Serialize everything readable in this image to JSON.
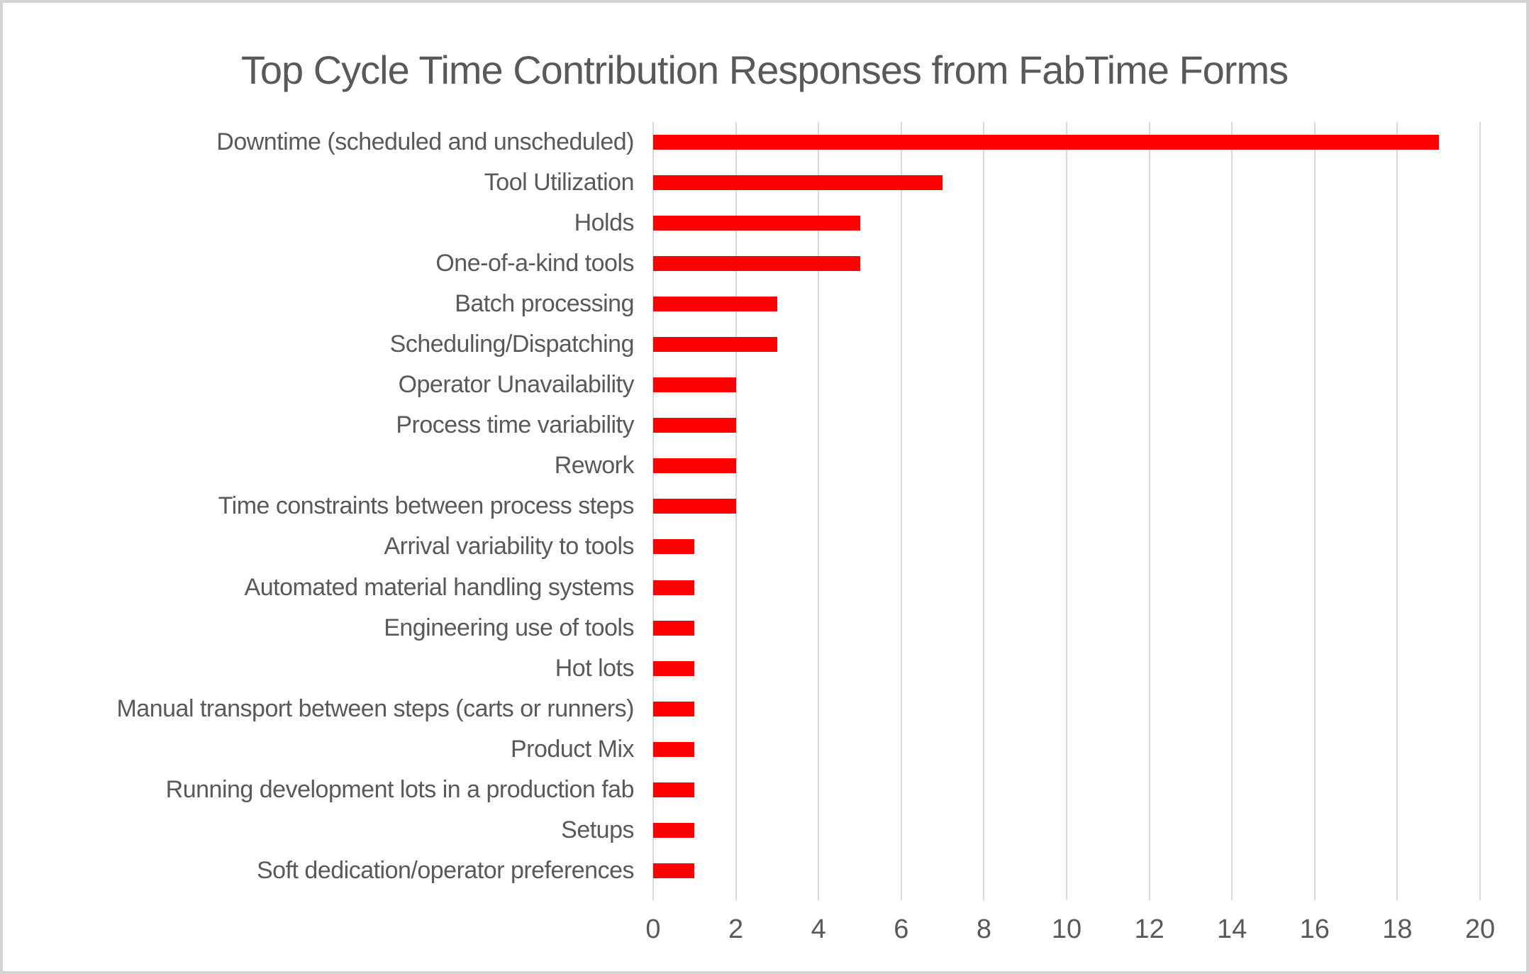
{
  "window": {
    "background": "#ffffff",
    "border_color": "#d4d4d4"
  },
  "chart_data": {
    "type": "bar",
    "orientation": "horizontal",
    "title": "Top Cycle Time Contribution Responses from FabTime Forms",
    "categories": [
      "Downtime (scheduled and unscheduled)",
      "Tool Utilization",
      "Holds",
      "One-of-a-kind tools",
      "Batch processing",
      "Scheduling/Dispatching",
      "Operator Unavailability",
      "Process time variability",
      "Rework",
      "Time constraints between process steps",
      "Arrival variability to tools",
      "Automated material handling systems",
      "Engineering use of tools",
      "Hot lots",
      "Manual transport between steps (carts or runners)",
      "Product Mix",
      "Running development lots in a production fab",
      "Setups",
      "Soft dedication/operator preferences"
    ],
    "values": [
      19,
      7,
      5,
      5,
      3,
      3,
      2,
      2,
      2,
      2,
      1,
      1,
      1,
      1,
      1,
      1,
      1,
      1,
      1
    ],
    "xlabel": "",
    "ylabel": "",
    "xlim": [
      0,
      20
    ],
    "x_ticks": [
      0,
      2,
      4,
      6,
      8,
      10,
      12,
      14,
      16,
      18,
      20
    ],
    "grid": "vertical",
    "legend": "none",
    "bar_color": "#ff0000",
    "gridline_color": "#d9d9d9",
    "text_color": "#595959",
    "title_color": "#595959"
  }
}
